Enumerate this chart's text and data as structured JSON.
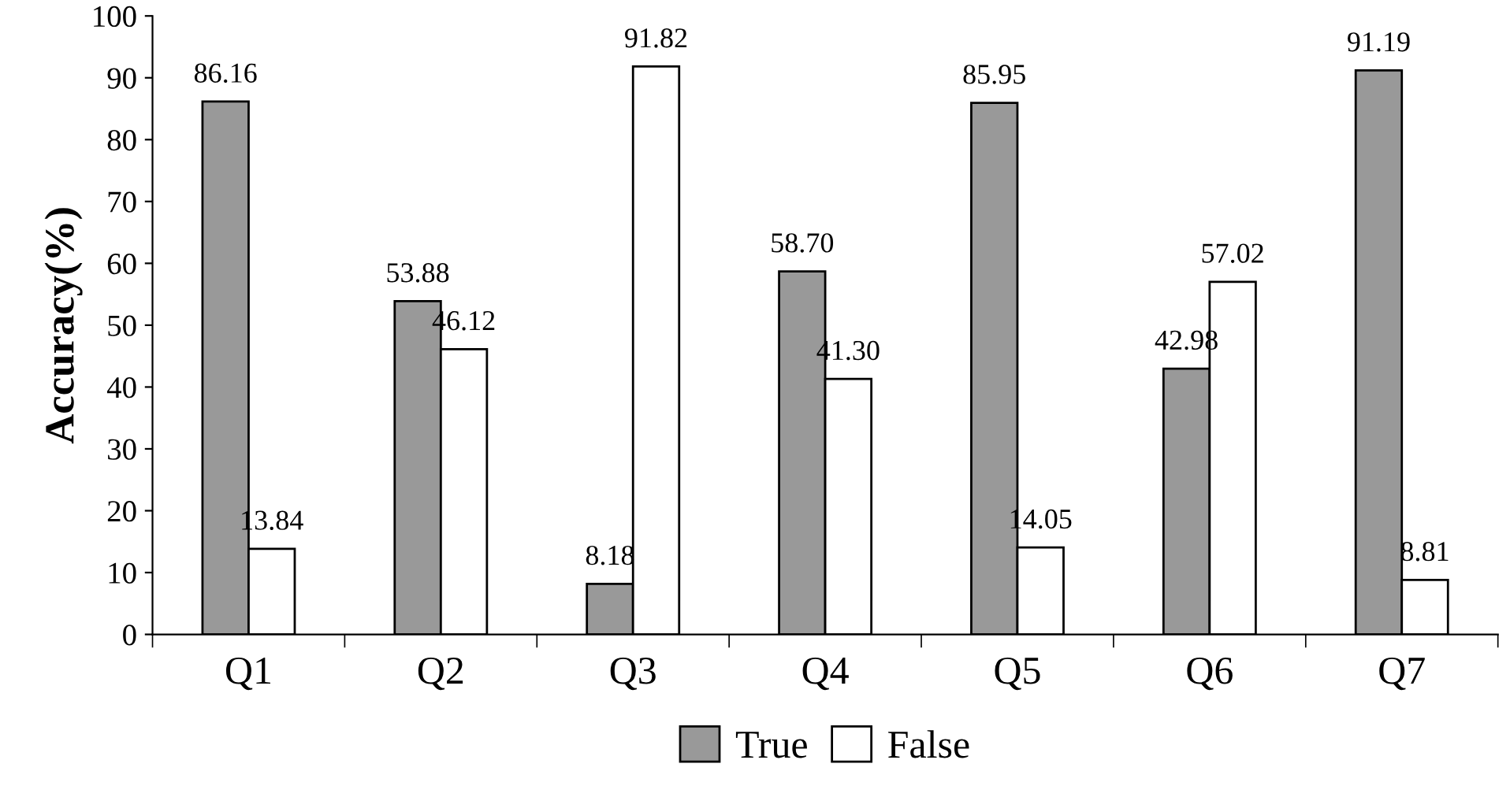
{
  "chart_data": {
    "type": "bar",
    "ylabel": "Accuracy(%)",
    "categories": [
      "Q1",
      "Q2",
      "Q3",
      "Q4",
      "Q5",
      "Q6",
      "Q7"
    ],
    "series": [
      {
        "name": "True",
        "color": "#999999",
        "values": [
          86.16,
          53.88,
          8.18,
          58.7,
          85.95,
          42.98,
          91.19
        ],
        "value_labels": [
          "86.16",
          "53.88",
          "8.18",
          "58.70",
          "85.95",
          "42.98",
          "91.19"
        ]
      },
      {
        "name": "False",
        "color": "#ffffff",
        "values": [
          13.84,
          46.12,
          91.82,
          41.3,
          14.05,
          57.02,
          8.81
        ],
        "value_labels": [
          "13.84",
          "46.12",
          "91.82",
          "41.30",
          "14.05",
          "57.02",
          "8.81"
        ]
      }
    ],
    "ylim": [
      0,
      100
    ],
    "yticks": [
      0,
      10,
      20,
      30,
      40,
      50,
      60,
      70,
      80,
      90,
      100
    ],
    "grid": false,
    "legend": "bottom"
  }
}
